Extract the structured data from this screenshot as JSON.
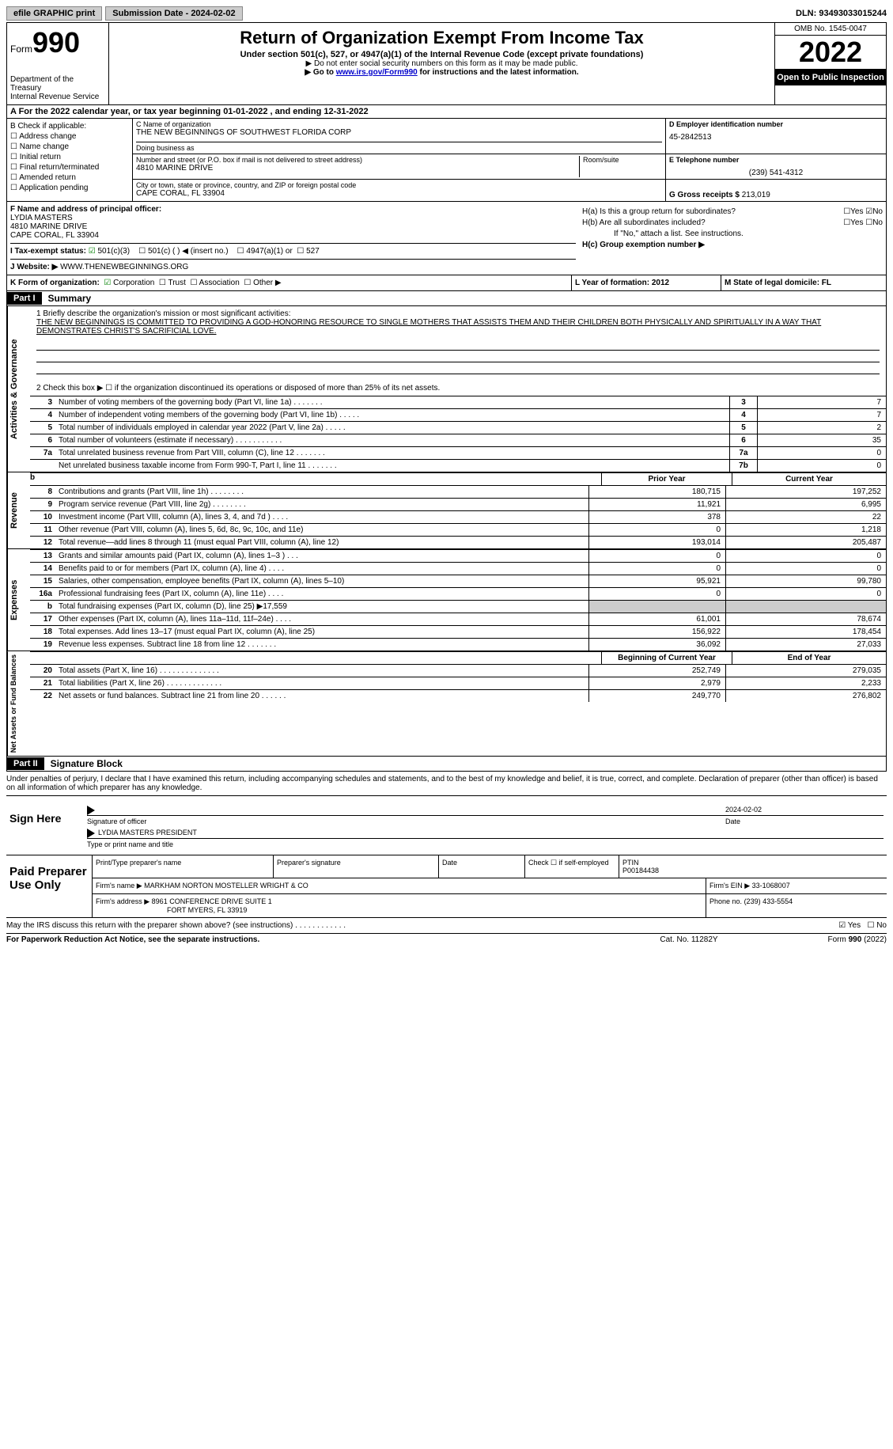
{
  "topbar": {
    "btn1": "efile GRAPHIC print",
    "btn2": "Submission Date - 2024-02-02",
    "dln": "DLN: 93493033015244"
  },
  "header": {
    "form_prefix": "Form",
    "form_num": "990",
    "dept": "Department of the Treasury",
    "irs": "Internal Revenue Service",
    "title": "Return of Organization Exempt From Income Tax",
    "sub": "Under section 501(c), 527, or 4947(a)(1) of the Internal Revenue Code (except private foundations)",
    "line1": "▶ Do not enter social security numbers on this form as it may be made public.",
    "line2_pre": "▶ Go to ",
    "line2_link": "www.irs.gov/Form990",
    "line2_post": " for instructions and the latest information.",
    "omb": "OMB No. 1545-0047",
    "year": "2022",
    "open": "Open to Public Inspection"
  },
  "rowA": "A For the 2022 calendar year, or tax year beginning 01-01-2022    , and ending 12-31-2022",
  "colB": {
    "title": "B Check if applicable:",
    "items": [
      "Address change",
      "Name change",
      "Initial return",
      "Final return/terminated",
      "Amended return",
      "Application pending"
    ]
  },
  "colC": {
    "name_label": "C Name of organization",
    "name": "THE NEW BEGINNINGS OF SOUTHWEST FLORIDA CORP",
    "dba_label": "Doing business as",
    "addr_label": "Number and street (or P.O. box if mail is not delivered to street address)",
    "room_label": "Room/suite",
    "addr": "4810 MARINE DRIVE",
    "city_label": "City or town, state or province, country, and ZIP or foreign postal code",
    "city": "CAPE CORAL, FL  33904"
  },
  "colD": {
    "ein_label": "D Employer identification number",
    "ein": "45-2842513",
    "tel_label": "E Telephone number",
    "tel": "(239) 541-4312",
    "gross_label": "G Gross receipts $",
    "gross": "213,019"
  },
  "rowF": {
    "label": "F  Name and address of principal officer:",
    "name": "LYDIA MASTERS",
    "addr1": "4810 MARINE DRIVE",
    "addr2": "CAPE CORAL, FL  33904"
  },
  "rowH": {
    "a": "H(a)  Is this a group return for subordinates?",
    "b": "H(b)  Are all subordinates included?",
    "b_note": "If \"No,\" attach a list. See instructions.",
    "c": "H(c)  Group exemption number ▶"
  },
  "rowI": {
    "label": "I    Tax-exempt status:",
    "o1": "501(c)(3)",
    "o2": "501(c) (  ) ◀ (insert no.)",
    "o3": "4947(a)(1) or",
    "o4": "527"
  },
  "rowJ": {
    "label": "J    Website: ▶ ",
    "val": "WWW.THENEWBEGINNINGS.ORG"
  },
  "rowK": {
    "label": "K Form of organization:",
    "corp": "Corporation",
    "trust": "Trust",
    "assoc": "Association",
    "other": "Other ▶",
    "l": "L Year of formation: 2012",
    "m": "M State of legal domicile: FL"
  },
  "part1": {
    "label": "Part I",
    "title": "Summary"
  },
  "governance": {
    "vert": "Activities & Governance",
    "l1_label": "1   Briefly describe the organization's mission or most significant activities:",
    "l1_text": "THE NEW BEGINNINGS IS COMMITTED TO PROVIDING A GOD-HONORING RESOURCE TO SINGLE MOTHERS THAT ASSISTS THEM AND THEIR CHILDREN BOTH PHYSICALLY AND SPIRITUALLY IN A WAY THAT DEMONSTRATES CHRIST'S SACRIFICIAL LOVE.",
    "l2": "2   Check this box ▶ ☐  if the organization discontinued its operations or disposed of more than 25% of its net assets.",
    "rows": [
      {
        "n": "3",
        "desc": "Number of voting members of the governing body (Part VI, line 1a)   .    .    .    .    .    .    .",
        "box": "3",
        "val": "7"
      },
      {
        "n": "4",
        "desc": "Number of independent voting members of the governing body (Part VI, line 1b)   .    .    .    .    .",
        "box": "4",
        "val": "7"
      },
      {
        "n": "5",
        "desc": "Total number of individuals employed in calendar year 2022 (Part V, line 2a)   .    .    .    .    .",
        "box": "5",
        "val": "2"
      },
      {
        "n": "6",
        "desc": "Total number of volunteers (estimate if necessary)    .    .    .    .    .    .    .    .    .    .    .",
        "box": "6",
        "val": "35"
      },
      {
        "n": "7a",
        "desc": "Total unrelated business revenue from Part VIII, column (C), line 12    .    .    .    .    .    .    .",
        "box": "7a",
        "val": "0"
      },
      {
        "n": "",
        "desc": "Net unrelated business taxable income from Form 990-T, Part I, line 11   .    .    .    .    .    .    .",
        "box": "7b",
        "val": "0"
      }
    ]
  },
  "revenue": {
    "vert": "Revenue",
    "h1": "Prior Year",
    "h2": "Current Year",
    "rows": [
      {
        "n": "8",
        "desc": "Contributions and grants (Part VIII, line 1h)    .    .    .    .    .    .    .    .",
        "v1": "180,715",
        "v2": "197,252"
      },
      {
        "n": "9",
        "desc": "Program service revenue (Part VIII, line 2g)    .    .    .    .    .    .    .    .",
        "v1": "11,921",
        "v2": "6,995"
      },
      {
        "n": "10",
        "desc": "Investment income (Part VIII, column (A), lines 3, 4, and 7d )    .    .    .    .",
        "v1": "378",
        "v2": "22"
      },
      {
        "n": "11",
        "desc": "Other revenue (Part VIII, column (A), lines 5, 6d, 8c, 9c, 10c, and 11e)",
        "v1": "0",
        "v2": "1,218"
      },
      {
        "n": "12",
        "desc": "Total revenue—add lines 8 through 11 (must equal Part VIII, column (A), line 12)",
        "v1": "193,014",
        "v2": "205,487"
      }
    ]
  },
  "expenses": {
    "vert": "Expenses",
    "rows": [
      {
        "n": "13",
        "desc": "Grants and similar amounts paid (Part IX, column (A), lines 1–3 )   .    .    .",
        "v1": "0",
        "v2": "0"
      },
      {
        "n": "14",
        "desc": "Benefits paid to or for members (Part IX, column (A), line 4)   .    .    .    .",
        "v1": "0",
        "v2": "0"
      },
      {
        "n": "15",
        "desc": "Salaries, other compensation, employee benefits (Part IX, column (A), lines 5–10)",
        "v1": "95,921",
        "v2": "99,780"
      },
      {
        "n": "16a",
        "desc": "Professional fundraising fees (Part IX, column (A), line 11e)   .    .    .    .",
        "v1": "0",
        "v2": "0"
      },
      {
        "n": "b",
        "desc": "Total fundraising expenses (Part IX, column (D), line 25) ▶17,559",
        "v1": "",
        "v2": "",
        "shaded": true
      },
      {
        "n": "17",
        "desc": "Other expenses (Part IX, column (A), lines 11a–11d, 11f–24e)   .    .    .    .",
        "v1": "61,001",
        "v2": "78,674"
      },
      {
        "n": "18",
        "desc": "Total expenses. Add lines 13–17 (must equal Part IX, column (A), line 25)",
        "v1": "156,922",
        "v2": "178,454"
      },
      {
        "n": "19",
        "desc": "Revenue less expenses. Subtract line 18 from line 12  .    .    .    .    .    .    .",
        "v1": "36,092",
        "v2": "27,033"
      }
    ]
  },
  "netassets": {
    "vert": "Net Assets or Fund Balances",
    "h1": "Beginning of Current Year",
    "h2": "End of Year",
    "rows": [
      {
        "n": "20",
        "desc": "Total assets (Part X, line 16)  .    .    .    .    .    .    .    .    .    .    .    .    .    .",
        "v1": "252,749",
        "v2": "279,035"
      },
      {
        "n": "21",
        "desc": "Total liabilities (Part X, line 26)  .    .    .    .    .    .    .    .    .    .    .    .    .",
        "v1": "2,979",
        "v2": "2,233"
      },
      {
        "n": "22",
        "desc": "Net assets or fund balances. Subtract line 21 from line 20   .    .    .    .    .    .",
        "v1": "249,770",
        "v2": "276,802"
      }
    ]
  },
  "part2": {
    "label": "Part II",
    "title": "Signature Block"
  },
  "sig": {
    "text": "Under penalties of perjury, I declare that I have examined this return, including accompanying schedules and statements, and to the best of my knowledge and belief, it is true, correct, and complete. Declaration of preparer (other than officer) is based on all information of which preparer has any knowledge.",
    "sign_here": "Sign Here",
    "officer_sig": "Signature of officer",
    "date": "2024-02-02",
    "date_label": "Date",
    "name": "LYDIA MASTERS PRESIDENT",
    "name_label": "Type or print name and title"
  },
  "prep": {
    "title": "Paid Preparer Use Only",
    "h1": "Print/Type preparer's name",
    "h2": "Preparer's signature",
    "h3": "Date",
    "h4_a": "Check ☐ if self-employed",
    "h4_b": "PTIN",
    "ptin": "P00184438",
    "firm_label": "Firm's name      ▶",
    "firm": "MARKHAM NORTON MOSTELLER WRIGHT & CO",
    "ein_label": "Firm's EIN ▶",
    "ein": "33-1068007",
    "addr_label": "Firm's address ▶",
    "addr1": "8961 CONFERENCE DRIVE SUITE 1",
    "addr2": "FORT MYERS, FL  33919",
    "phone_label": "Phone no.",
    "phone": "(239) 433-5554"
  },
  "footer": {
    "discuss": "May the IRS discuss this return with the preparer shown above? (see instructions)    .    .    .    .    .    .    .    .    .    .    .    .",
    "yes": "☑ Yes",
    "no": "☐ No",
    "paperwork": "For Paperwork Reduction Act Notice, see the separate instructions.",
    "cat": "Cat. No. 11282Y",
    "formref": "Form 990 (2022)"
  }
}
